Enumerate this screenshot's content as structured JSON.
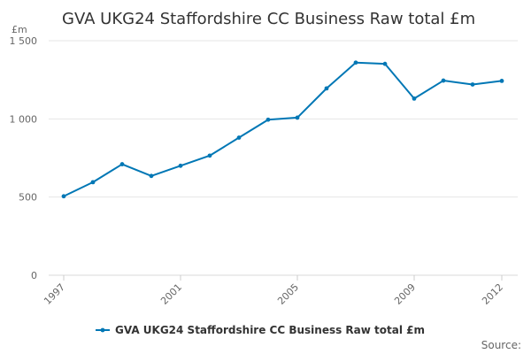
{
  "chart_data": {
    "type": "line",
    "title": "GVA UKG24 Staffordshire CC Business Raw total £m",
    "ylabel": "£m",
    "xlabel": "",
    "x": [
      1997,
      1998,
      1999,
      2000,
      2001,
      2002,
      2003,
      2004,
      2005,
      2006,
      2007,
      2008,
      2009,
      2010,
      2011,
      2012
    ],
    "series": [
      {
        "name": "GVA UKG24 Staffordshire CC Business Raw total £m",
        "values": [
          505,
          595,
          710,
          635,
          700,
          765,
          880,
          995,
          1008,
          1195,
          1360,
          1352,
          1130,
          1245,
          1220,
          1243
        ],
        "color": "#0077b5"
      }
    ],
    "x_tick_values": [
      1997,
      2001,
      2005,
      2009,
      2012
    ],
    "x_tick_labels": [
      "1997",
      "2001",
      "2005",
      "2009",
      "2012"
    ],
    "y_tick_values": [
      0,
      500,
      1000,
      1500
    ],
    "y_tick_labels": [
      "0",
      "500",
      "1 000",
      "1 500"
    ],
    "ylim": [
      0,
      1500
    ],
    "xlim": [
      1997,
      2012
    ],
    "grid": true,
    "legend_position": "bottom-center",
    "source_label": "Source:"
  }
}
